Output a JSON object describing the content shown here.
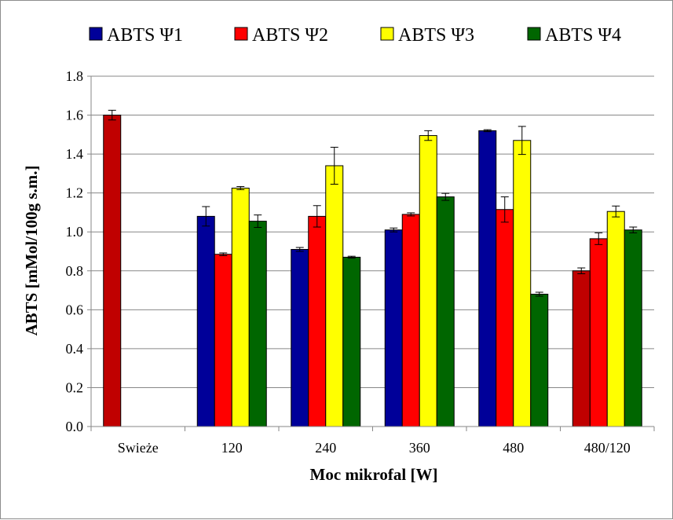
{
  "chart_data": {
    "type": "bar",
    "categories": [
      "Swieże",
      "120",
      "240",
      "360",
      "480",
      "480/120"
    ],
    "series": [
      {
        "name": "ABTS Ψ1",
        "color": "#000099",
        "values": [
          null,
          1.08,
          0.91,
          1.01,
          1.52,
          null
        ],
        "errors": [
          null,
          0.05,
          0.01,
          0.01,
          0.005,
          null
        ]
      },
      {
        "name": "ABTS Ψ2",
        "color": "#ff0000",
        "values": [
          null,
          0.885,
          1.08,
          1.09,
          1.115,
          0.965
        ],
        "errors": [
          null,
          0.007,
          0.055,
          0.008,
          0.065,
          0.03
        ]
      },
      {
        "name": "ABTS Ψ3",
        "color": "#ffff00",
        "values": [
          null,
          1.225,
          1.34,
          1.495,
          1.47,
          1.105
        ],
        "errors": [
          null,
          0.008,
          0.095,
          0.025,
          0.072,
          0.028
        ]
      },
      {
        "name": "ABTS Ψ4",
        "color": "#006600",
        "values": [
          null,
          1.055,
          0.87,
          1.18,
          0.68,
          1.01
        ],
        "errors": [
          null,
          0.032,
          0.005,
          0.018,
          0.01,
          0.015
        ]
      }
    ],
    "special_bars": [
      {
        "category": "Swieże",
        "value": 1.6,
        "error": 0.025,
        "color": "#c00000"
      },
      {
        "category": "480/120",
        "value": 0.8,
        "error": 0.015,
        "color": "#c00000"
      }
    ],
    "xlabel": "Moc mikrofal [W]",
    "ylabel": "ABTS [mMol/100g s.m.]",
    "ylim": [
      0,
      1.8
    ],
    "yticks": [
      "0.0",
      "0.2",
      "0.4",
      "0.6",
      "0.8",
      "1.0",
      "1.2",
      "1.4",
      "1.6",
      "1.8"
    ],
    "grid": true,
    "legend_position": "top"
  }
}
